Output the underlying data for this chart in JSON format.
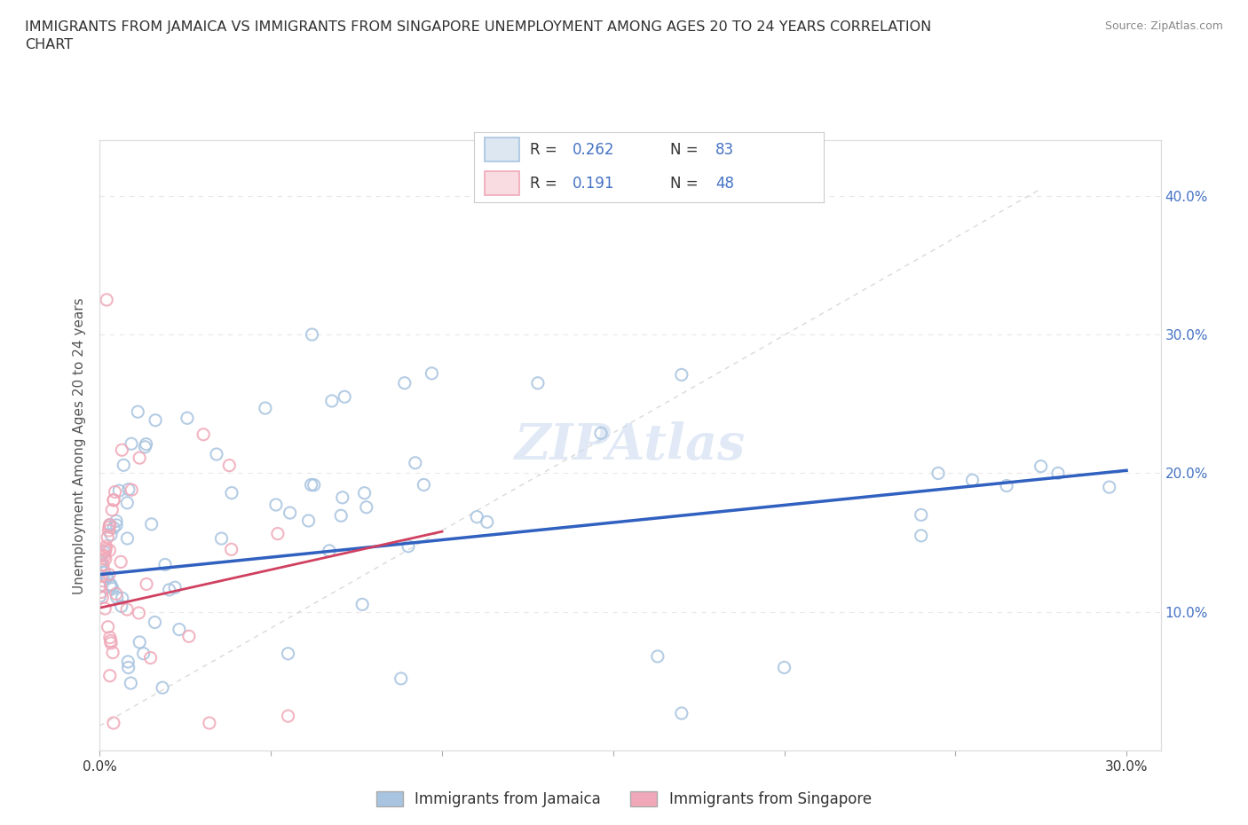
{
  "title": "IMMIGRANTS FROM JAMAICA VS IMMIGRANTS FROM SINGAPORE UNEMPLOYMENT AMONG AGES 20 TO 24 YEARS CORRELATION\nCHART",
  "source": "Source: ZipAtlas.com",
  "ylabel": "Unemployment Among Ages 20 to 24 years",
  "xlim": [
    0.0,
    0.31
  ],
  "ylim": [
    0.0,
    0.44
  ],
  "jamaica_color": "#a8c4e0",
  "singapore_color": "#f0a8b8",
  "jamaica_edge_color": "#a8c4e0",
  "singapore_edge_color": "#f0a8b8",
  "jamaica_line_color": "#3060c0",
  "singapore_line_color": "#d04060",
  "ref_line_color": "#d0d0d0",
  "jamaica_R": 0.262,
  "jamaica_N": 83,
  "singapore_R": 0.191,
  "singapore_N": 48,
  "background_color": "#ffffff",
  "grid_color": "#e8e8e8",
  "watermark": "ZIPAtlas",
  "legend_jamaica_label": "Immigrants from Jamaica",
  "legend_singapore_label": "Immigrants from Singapore",
  "right_tick_color": "#4472c4",
  "title_color": "#303030",
  "source_color": "#888888"
}
